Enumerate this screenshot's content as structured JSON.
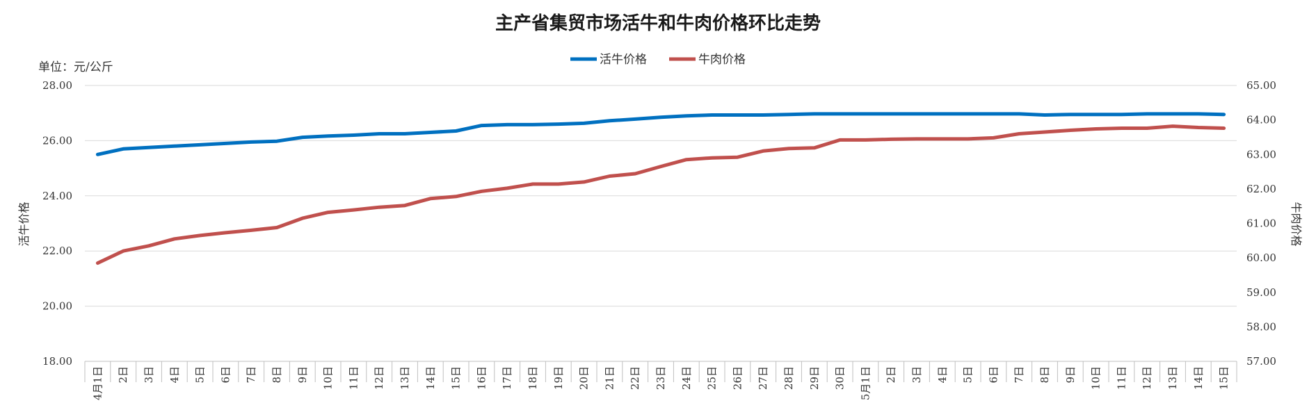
{
  "chart_data": {
    "type": "line",
    "title": "主产省集贸市场活牛和牛肉价格环比走势",
    "unit_label": "单位：元/公斤",
    "ylabel": "活牛价格",
    "y2label": "牛肉价格",
    "ylim": [
      18.0,
      28.0
    ],
    "y2lim": [
      57.0,
      65.0
    ],
    "y_ticks": [
      "18.00",
      "20.00",
      "22.00",
      "24.00",
      "26.00",
      "28.00"
    ],
    "y2_ticks": [
      "57.00",
      "58.00",
      "59.00",
      "60.00",
      "61.00",
      "62.00",
      "63.00",
      "64.00",
      "65.00"
    ],
    "grid": true,
    "legend_position": "top-center",
    "categories": [
      "4月1日",
      "2日",
      "3日",
      "4日",
      "5日",
      "6日",
      "7日",
      "8日",
      "9日",
      "10日",
      "11日",
      "12日",
      "13日",
      "14日",
      "15日",
      "16日",
      "17日",
      "18日",
      "19日",
      "20日",
      "21日",
      "22日",
      "23日",
      "24日",
      "25日",
      "26日",
      "27日",
      "28日",
      "29日",
      "30日",
      "5月1日",
      "2日",
      "3日",
      "4日",
      "5日",
      "6日",
      "7日",
      "8日",
      "9日",
      "10日",
      "11日",
      "12日",
      "13日",
      "14日",
      "15日"
    ],
    "series": [
      {
        "name": "活牛价格",
        "axis": "left",
        "color": "#0070C0",
        "values": [
          25.5,
          25.7,
          25.75,
          25.8,
          25.85,
          25.9,
          25.95,
          25.98,
          26.12,
          26.17,
          26.2,
          26.25,
          26.25,
          26.3,
          26.35,
          26.55,
          26.58,
          26.58,
          26.6,
          26.63,
          26.72,
          26.78,
          26.85,
          26.9,
          26.93,
          26.93,
          26.93,
          26.95,
          26.97,
          26.97,
          26.97,
          26.97,
          26.97,
          26.97,
          26.97,
          26.97,
          26.97,
          26.93,
          26.95,
          26.95,
          26.95,
          26.97,
          26.97,
          26.97,
          26.95
        ]
      },
      {
        "name": "牛肉价格",
        "axis": "right",
        "color": "#C0504D",
        "values": [
          59.85,
          60.2,
          60.35,
          60.55,
          60.65,
          60.73,
          60.8,
          60.88,
          61.15,
          61.32,
          61.39,
          61.47,
          61.52,
          61.72,
          61.78,
          61.93,
          62.02,
          62.14,
          62.14,
          62.2,
          62.37,
          62.44,
          62.65,
          62.85,
          62.9,
          62.92,
          63.1,
          63.17,
          63.19,
          63.42,
          63.42,
          63.44,
          63.45,
          63.45,
          63.45,
          63.48,
          63.6,
          63.65,
          63.7,
          63.74,
          63.76,
          63.76,
          63.82,
          63.78,
          63.76
        ]
      }
    ]
  }
}
